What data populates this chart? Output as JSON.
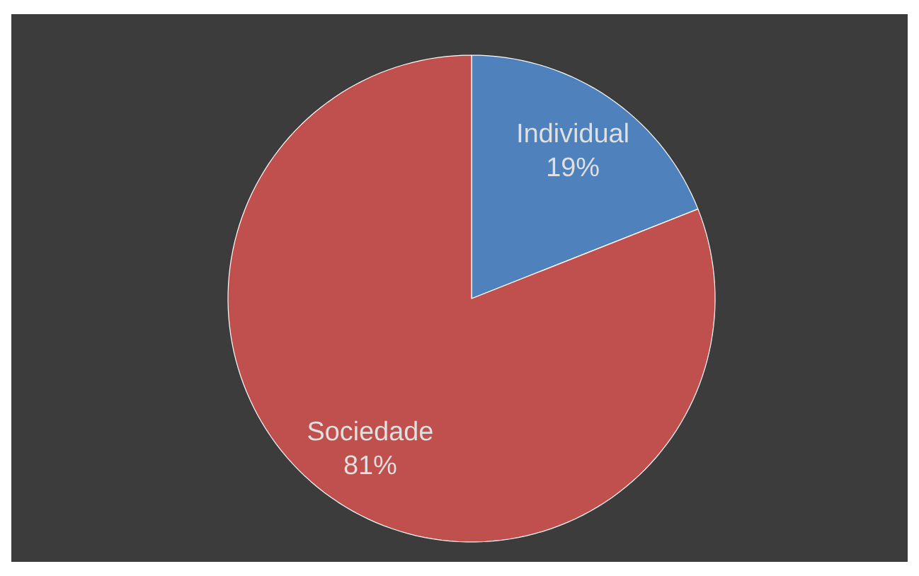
{
  "chart_data": {
    "type": "pie",
    "categories": [
      "Individual",
      "Sociedade"
    ],
    "values": [
      19,
      81
    ],
    "colors": [
      "#4f81bd",
      "#c0504d"
    ],
    "value_labels": [
      "19%",
      "81%"
    ]
  }
}
